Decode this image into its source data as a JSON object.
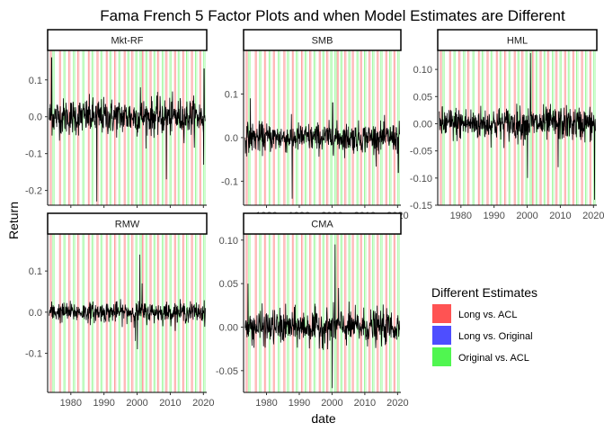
{
  "chart_data": {
    "type": "line",
    "title": "Fama French 5 Factor Plots and when Model Estimates are Different",
    "xlabel": "date",
    "ylabel": "Return",
    "x_ticks": [
      "1980",
      "1990",
      "2000",
      "2010",
      "2020"
    ],
    "x_range": [
      1973,
      2021
    ],
    "grid": false,
    "legend": {
      "title": "Different Estimates",
      "position": "right",
      "entries": [
        {
          "label": "Long vs. ACL",
          "color": "#FF4A4A"
        },
        {
          "label": "Long vs. Original",
          "color": "#4545FF"
        },
        {
          "label": "Original vs. ACL",
          "color": "#47F547"
        }
      ]
    },
    "panels": [
      {
        "name": "Mkt-RF",
        "ylim": [
          -0.24,
          0.18
        ],
        "y_ticks": [
          -0.2,
          -0.1,
          0.0,
          0.1
        ],
        "y_tick_labels": [
          "-0.2",
          "-0.1",
          "0.0",
          "0.1"
        ],
        "vol": 0.045,
        "extremes": [
          [
            1987.8,
            -0.23
          ],
          [
            1974.2,
            0.16
          ],
          [
            2008.8,
            -0.17
          ],
          [
            2020.2,
            0.13
          ],
          [
            2020.1,
            -0.13
          ],
          [
            2001.0,
            0.08
          ]
        ]
      },
      {
        "name": "SMB",
        "ylim": [
          -0.155,
          0.2
        ],
        "y_ticks": [
          -0.1,
          0.0,
          0.1
        ],
        "y_tick_labels": [
          "-0.1",
          "0.0",
          "0.1"
        ],
        "vol": 0.03,
        "extremes": [
          [
            1975.1,
            0.09
          ],
          [
            1987.8,
            -0.14
          ],
          [
            2000.2,
            0.08
          ],
          [
            2020.2,
            -0.08
          ]
        ]
      },
      {
        "name": "HML",
        "ylim": [
          -0.15,
          0.135
        ],
        "y_ticks": [
          -0.15,
          -0.1,
          -0.05,
          0.0,
          0.05,
          0.1
        ],
        "y_tick_labels": [
          "-0.15",
          "-0.10",
          "-0.05",
          "0.00",
          "0.05",
          "0.10"
        ],
        "vol": 0.028,
        "extremes": [
          [
            2001.0,
            0.13
          ],
          [
            2000.1,
            -0.1
          ],
          [
            2009.3,
            -0.08
          ],
          [
            2020.3,
            -0.14
          ]
        ]
      },
      {
        "name": "RMW",
        "ylim": [
          -0.195,
          0.19
        ],
        "y_ticks": [
          -0.1,
          0.0,
          0.1
        ],
        "y_tick_labels": [
          "-0.1",
          "0.0",
          "0.1"
        ],
        "vol": 0.022,
        "extremes": [
          [
            2000.8,
            0.14
          ],
          [
            2000.1,
            -0.09
          ],
          [
            1999.5,
            -0.07
          ],
          [
            2001.5,
            0.07
          ]
        ]
      },
      {
        "name": "CMA",
        "ylim": [
          -0.075,
          0.107
        ],
        "y_ticks": [
          -0.05,
          0.0,
          0.05,
          0.1
        ],
        "y_tick_labels": [
          "-0.05",
          "0.00",
          "0.05",
          "0.10"
        ],
        "vol": 0.018,
        "extremes": [
          [
            2000.9,
            0.095
          ],
          [
            2000.1,
            -0.07
          ],
          [
            1974.3,
            0.05
          ],
          [
            2002.0,
            0.045
          ]
        ]
      }
    ],
    "highlight_dates_red": [
      1973.8,
      1976.6,
      1979.4,
      1982.1,
      1985.3,
      1987.9,
      1990.7,
      1993.2,
      1996.1,
      1998.4,
      2001.6,
      2003.9,
      2006.2,
      2008.7,
      2011.3,
      2013.8,
      2016.4,
      2018.9
    ],
    "highlight_dates_green": [
      1974.6,
      1977.9,
      1980.8,
      1983.6,
      1986.4,
      1989.1,
      1991.8,
      1994.5,
      1997.2,
      1999.6,
      2000.9,
      2002.7,
      2005.1,
      2007.6,
      2009.9,
      2012.4,
      2014.9,
      2017.6,
      2020.1
    ]
  }
}
